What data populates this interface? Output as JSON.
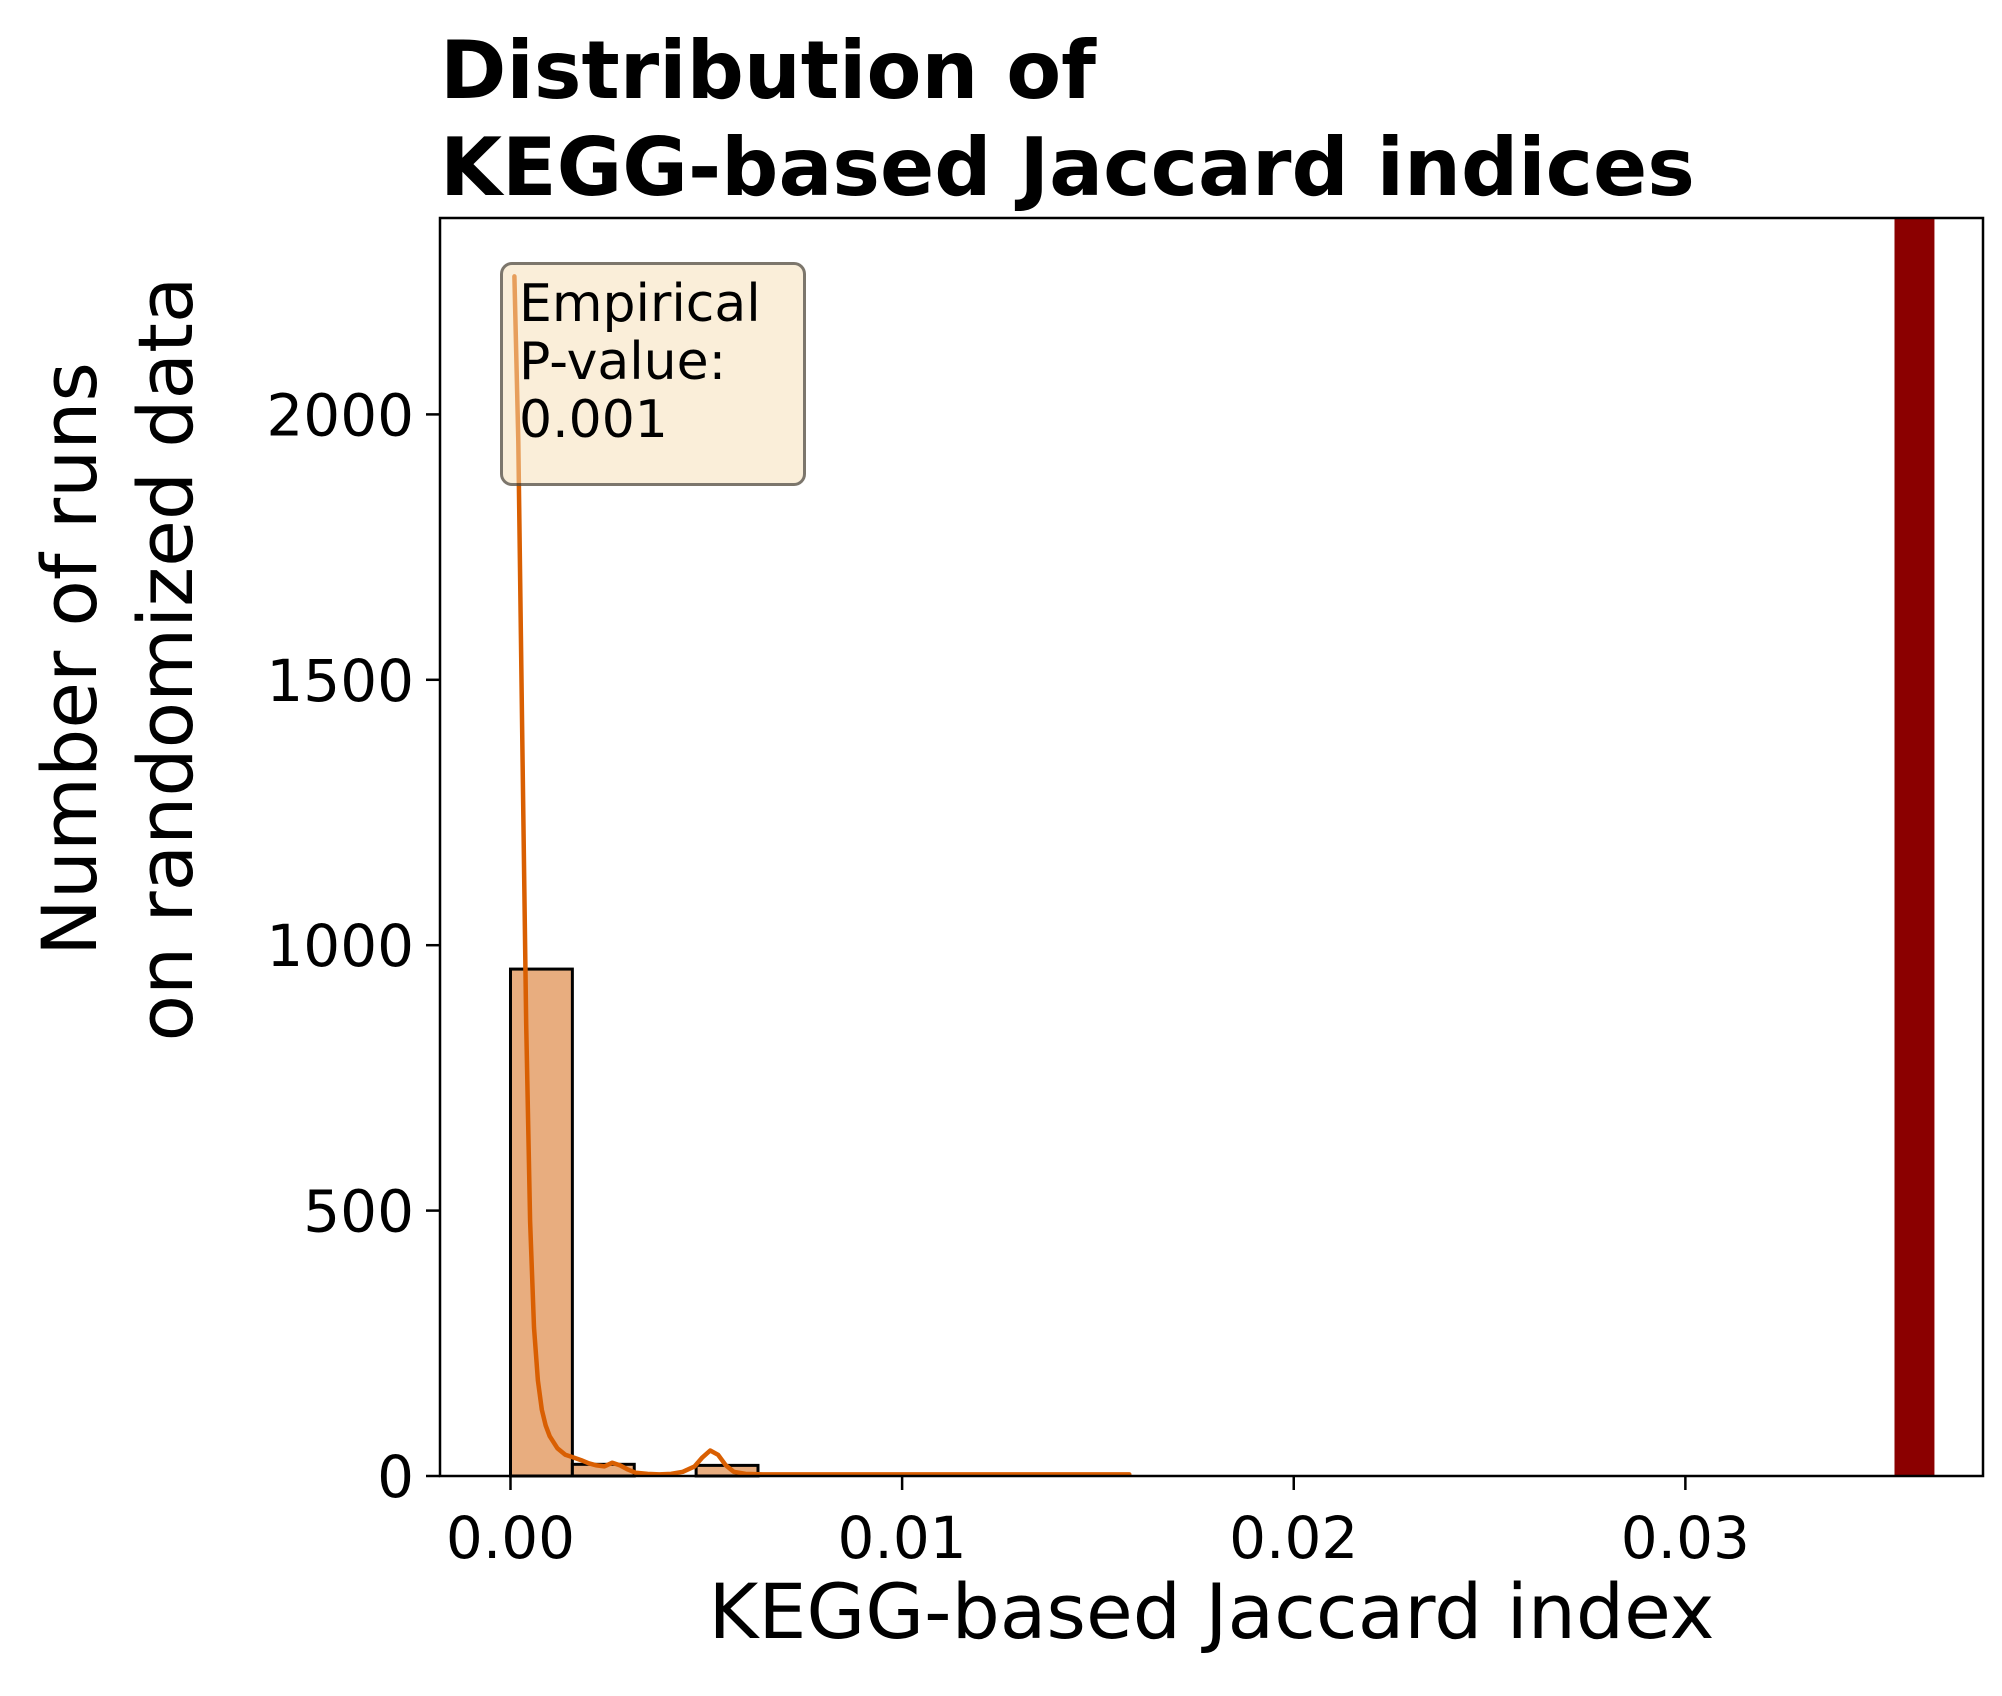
{
  "chart_data": {
    "type": "bar",
    "title_lines": [
      "Distribution of",
      "KEGG-based Jaccard indices"
    ],
    "xlabel": "KEGG-based Jaccard index",
    "ylabel_lines": [
      "Number of runs",
      "on randomized data"
    ],
    "xlim": [
      -0.0018,
      0.0376
    ],
    "ylim": [
      0,
      2370
    ],
    "x_ticks": [
      0.0,
      0.01,
      0.02,
      0.03
    ],
    "x_tick_labels": [
      "0.00",
      "0.01",
      "0.02",
      "0.03"
    ],
    "y_ticks": [
      0,
      500,
      1000,
      1500,
      2000
    ],
    "y_tick_labels": [
      "0",
      "500",
      "1000",
      "1500",
      "2000"
    ],
    "histogram": {
      "bin_edges": [
        0.0,
        0.00158,
        0.00316,
        0.00474,
        0.00632
      ],
      "counts": [
        955,
        22,
        0,
        20
      ],
      "fill_color": "#e8ad7f",
      "edge_color": "#000000"
    },
    "kde": {
      "color": "#d95f02",
      "x": [
        0.0001,
        0.0002,
        0.0003,
        0.0004,
        0.0005,
        0.0006,
        0.0007,
        0.0008,
        0.0009,
        0.001,
        0.0012,
        0.0014,
        0.0016,
        0.0018,
        0.002,
        0.0022,
        0.0024,
        0.0026,
        0.0028,
        0.003,
        0.0032,
        0.0035,
        0.0038,
        0.0041,
        0.0044,
        0.0047,
        0.0049,
        0.0051,
        0.0053,
        0.0055,
        0.0057,
        0.006,
        0.0065,
        0.007,
        0.008,
        0.009,
        0.01,
        0.011,
        0.012,
        0.013,
        0.014,
        0.015,
        0.0158
      ],
      "y": [
        2260,
        1950,
        1400,
        850,
        480,
        280,
        180,
        125,
        95,
        75,
        52,
        40,
        35,
        30,
        24,
        20,
        18,
        25,
        20,
        12,
        6,
        4,
        3,
        4,
        8,
        18,
        35,
        48,
        40,
        20,
        8,
        4,
        3,
        3,
        3,
        3,
        3,
        3,
        3,
        3,
        3,
        3,
        3
      ]
    },
    "observed_value": {
      "x": 0.0358,
      "x_start": 0.03534,
      "x_end": 0.03636,
      "color": "#8b0000"
    },
    "annotation_lines": [
      "Empirical",
      "P-value:",
      "0.001"
    ],
    "annotation_position": "top-left",
    "grid": false
  }
}
